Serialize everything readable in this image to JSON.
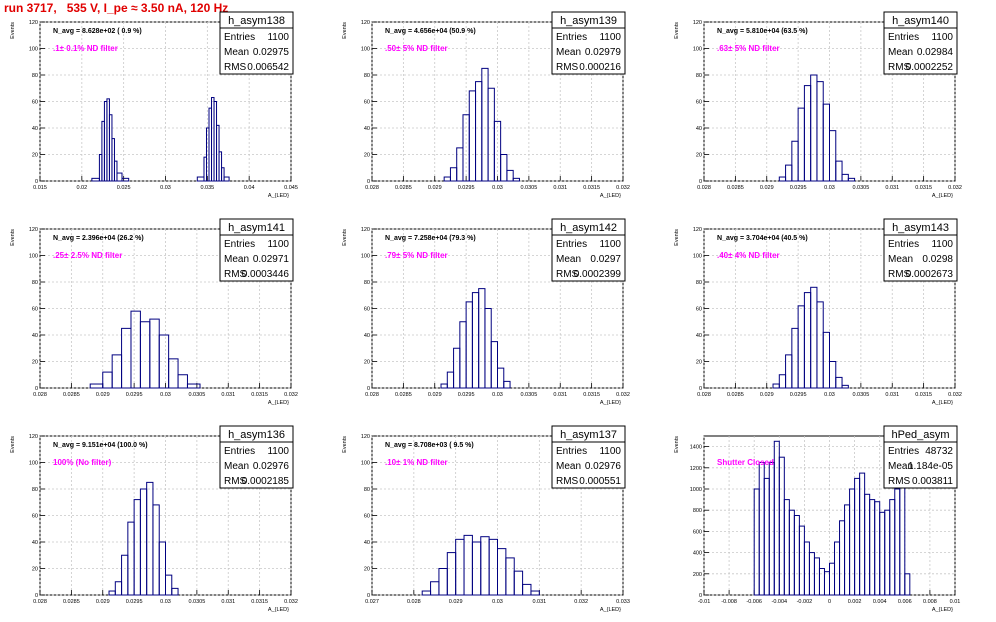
{
  "page_title": "run 3717,   535 V, I_pe ≈ 3.50 nA, 120 Hz",
  "colors": {
    "histogram": "#000080",
    "annotation": "#ff00ff",
    "title": "#e00000",
    "grid": "#c8c8c8"
  },
  "stat_labels": {
    "entries": "Entries",
    "mean": "Mean",
    "rms": "RMS"
  },
  "ylabel": "Events",
  "xlabel": "A_{LED}",
  "chart_data": [
    {
      "type": "histogram",
      "name": "h_asym138",
      "entries": "1100",
      "mean": "0.02975",
      "rms": "0.006542",
      "navg": "N_avg = 8.628e+02 ( 0.9 %)",
      "filter": ".1± 0.1% ND filter",
      "xlim": [
        0.015,
        0.045
      ],
      "ylim": [
        0,
        120
      ],
      "xticks": [
        0.015,
        0.02,
        0.025,
        0.03,
        0.035,
        0.04,
        0.045
      ],
      "xtick_labels": [
        "0.015",
        "0.02",
        "0.025",
        "0.03",
        "0.035",
        "0.04",
        "0.045"
      ],
      "yticks": [
        0,
        20,
        40,
        60,
        80,
        100,
        120
      ],
      "ytick_labels": [
        "0",
        "20",
        "40",
        "60",
        "80",
        "100",
        "120"
      ],
      "bins": [
        [
          0.0212,
          0.0221,
          2
        ],
        [
          0.0221,
          0.0224,
          20
        ],
        [
          0.0224,
          0.0227,
          45
        ],
        [
          0.0227,
          0.023,
          60
        ],
        [
          0.023,
          0.0233,
          62
        ],
        [
          0.0233,
          0.0236,
          50
        ],
        [
          0.0236,
          0.0239,
          32
        ],
        [
          0.0239,
          0.0242,
          15
        ],
        [
          0.0242,
          0.0248,
          6
        ],
        [
          0.0248,
          0.0256,
          2
        ],
        [
          0.0338,
          0.0346,
          3
        ],
        [
          0.0346,
          0.0349,
          18
        ],
        [
          0.0349,
          0.0352,
          40
        ],
        [
          0.0352,
          0.0355,
          55
        ],
        [
          0.0355,
          0.0358,
          63
        ],
        [
          0.0358,
          0.0361,
          60
        ],
        [
          0.0361,
          0.0364,
          42
        ],
        [
          0.0364,
          0.0367,
          22
        ],
        [
          0.0367,
          0.037,
          10
        ],
        [
          0.037,
          0.0376,
          3
        ]
      ]
    },
    {
      "type": "histogram",
      "name": "h_asym139",
      "entries": "1100",
      "mean": "0.02979",
      "rms": "0.000216",
      "navg": "N_avg = 4.656e+04 (50.9 %)",
      "filter": ".50± 5% ND filter",
      "xlim": [
        0.028,
        0.032
      ],
      "ylim": [
        0,
        120
      ],
      "xticks": [
        0.028,
        0.0285,
        0.029,
        0.0295,
        0.03,
        0.0305,
        0.031,
        0.0315,
        0.032
      ],
      "xtick_labels": [
        "0.028",
        "0.0285",
        "0.029",
        "0.0295",
        "0.03",
        "0.0305",
        "0.031",
        "0.0315",
        "0.032"
      ],
      "yticks": [
        0,
        20,
        40,
        60,
        80,
        100,
        120
      ],
      "ytick_labels": [
        "0",
        "20",
        "40",
        "60",
        "80",
        "100",
        "120"
      ],
      "bins": [
        [
          0.02915,
          0.02925,
          3
        ],
        [
          0.02925,
          0.02935,
          10
        ],
        [
          0.02935,
          0.02945,
          25
        ],
        [
          0.02945,
          0.02955,
          50
        ],
        [
          0.02955,
          0.02965,
          68
        ],
        [
          0.02965,
          0.02975,
          75
        ],
        [
          0.02975,
          0.02985,
          85
        ],
        [
          0.02985,
          0.02995,
          70
        ],
        [
          0.02995,
          0.03005,
          45
        ],
        [
          0.03005,
          0.03015,
          20
        ],
        [
          0.03015,
          0.03025,
          8
        ],
        [
          0.03025,
          0.03035,
          2
        ]
      ]
    },
    {
      "type": "histogram",
      "name": "h_asym140",
      "entries": "1100",
      "mean": "0.02984",
      "rms": "0.0002252",
      "navg": "N_avg = 5.810e+04 (63.5 %)",
      "filter": ".63± 5% ND filter",
      "xlim": [
        0.028,
        0.032
      ],
      "ylim": [
        0,
        120
      ],
      "xticks": [
        0.028,
        0.0285,
        0.029,
        0.0295,
        0.03,
        0.0305,
        0.031,
        0.0315,
        0.032
      ],
      "xtick_labels": [
        "0.028",
        "0.0285",
        "0.029",
        "0.0295",
        "0.03",
        "0.0305",
        "0.031",
        "0.0315",
        "0.032"
      ],
      "yticks": [
        0,
        20,
        40,
        60,
        80,
        100,
        120
      ],
      "ytick_labels": [
        "0",
        "20",
        "40",
        "60",
        "80",
        "100",
        "120"
      ],
      "bins": [
        [
          0.0292,
          0.0293,
          3
        ],
        [
          0.0293,
          0.0294,
          12
        ],
        [
          0.0294,
          0.0295,
          30
        ],
        [
          0.0295,
          0.0296,
          55
        ],
        [
          0.0296,
          0.0297,
          72
        ],
        [
          0.0297,
          0.0298,
          80
        ],
        [
          0.0298,
          0.0299,
          75
        ],
        [
          0.0299,
          0.03,
          58
        ],
        [
          0.03,
          0.0301,
          38
        ],
        [
          0.0301,
          0.0302,
          15
        ],
        [
          0.0302,
          0.0303,
          5
        ],
        [
          0.0303,
          0.0304,
          2
        ]
      ]
    },
    {
      "type": "histogram",
      "name": "h_asym141",
      "entries": "1100",
      "mean": "0.02971",
      "rms": "0.0003446",
      "navg": "N_avg = 2.396e+04 (26.2 %)",
      "filter": ".25± 2.5% ND filter",
      "xlim": [
        0.028,
        0.032
      ],
      "ylim": [
        0,
        120
      ],
      "xticks": [
        0.028,
        0.0285,
        0.029,
        0.0295,
        0.03,
        0.0305,
        0.031,
        0.0315,
        0.032
      ],
      "xtick_labels": [
        "0.028",
        "0.0285",
        "0.029",
        "0.0295",
        "0.03",
        "0.0305",
        "0.031",
        "0.0315",
        "0.032"
      ],
      "yticks": [
        0,
        20,
        40,
        60,
        80,
        100,
        120
      ],
      "ytick_labels": [
        "0",
        "20",
        "40",
        "60",
        "80",
        "100",
        "120"
      ],
      "bins": [
        [
          0.0288,
          0.029,
          3
        ],
        [
          0.029,
          0.02915,
          12
        ],
        [
          0.02915,
          0.0293,
          25
        ],
        [
          0.0293,
          0.02945,
          45
        ],
        [
          0.02945,
          0.0296,
          58
        ],
        [
          0.0296,
          0.02975,
          50
        ],
        [
          0.02975,
          0.0299,
          52
        ],
        [
          0.0299,
          0.03005,
          40
        ],
        [
          0.03005,
          0.0302,
          22
        ],
        [
          0.0302,
          0.03035,
          10
        ],
        [
          0.03035,
          0.03055,
          3
        ]
      ]
    },
    {
      "type": "histogram",
      "name": "h_asym142",
      "entries": "1100",
      "mean": "0.0297",
      "rms": "0.0002399",
      "navg": "N_avg = 7.258e+04 (79.3 %)",
      "filter": ".79± 5% ND filter",
      "xlim": [
        0.028,
        0.032
      ],
      "ylim": [
        0,
        120
      ],
      "xticks": [
        0.028,
        0.0285,
        0.029,
        0.0295,
        0.03,
        0.0305,
        0.031,
        0.0315,
        0.032
      ],
      "xtick_labels": [
        "0.028",
        "0.0285",
        "0.029",
        "0.0295",
        "0.03",
        "0.0305",
        "0.031",
        "0.0315",
        "0.032"
      ],
      "yticks": [
        0,
        20,
        40,
        60,
        80,
        100,
        120
      ],
      "ytick_labels": [
        "0",
        "20",
        "40",
        "60",
        "80",
        "100",
        "120"
      ],
      "bins": [
        [
          0.0291,
          0.0292,
          3
        ],
        [
          0.0292,
          0.0293,
          12
        ],
        [
          0.0293,
          0.0294,
          30
        ],
        [
          0.0294,
          0.0295,
          50
        ],
        [
          0.0295,
          0.0296,
          65
        ],
        [
          0.0296,
          0.0297,
          72
        ],
        [
          0.0297,
          0.0298,
          75
        ],
        [
          0.0298,
          0.0299,
          60
        ],
        [
          0.0299,
          0.03,
          35
        ],
        [
          0.03,
          0.0301,
          15
        ],
        [
          0.0301,
          0.0302,
          5
        ]
      ]
    },
    {
      "type": "histogram",
      "name": "h_asym143",
      "entries": "1100",
      "mean": "0.0298",
      "rms": "0.0002673",
      "navg": "N_avg = 3.704e+04 (40.5 %)",
      "filter": ".40± 4% ND filter",
      "xlim": [
        0.028,
        0.032
      ],
      "ylim": [
        0,
        120
      ],
      "xticks": [
        0.028,
        0.0285,
        0.029,
        0.0295,
        0.03,
        0.0305,
        0.031,
        0.0315,
        0.032
      ],
      "xtick_labels": [
        "0.028",
        "0.0285",
        "0.029",
        "0.0295",
        "0.03",
        "0.0305",
        "0.031",
        "0.0315",
        "0.032"
      ],
      "yticks": [
        0,
        20,
        40,
        60,
        80,
        100,
        120
      ],
      "ytick_labels": [
        "0",
        "20",
        "40",
        "60",
        "80",
        "100",
        "120"
      ],
      "bins": [
        [
          0.0291,
          0.0292,
          3
        ],
        [
          0.0292,
          0.0293,
          10
        ],
        [
          0.0293,
          0.0294,
          25
        ],
        [
          0.0294,
          0.0295,
          45
        ],
        [
          0.0295,
          0.0296,
          62
        ],
        [
          0.0296,
          0.0297,
          72
        ],
        [
          0.0297,
          0.0298,
          76
        ],
        [
          0.0298,
          0.0299,
          65
        ],
        [
          0.0299,
          0.03,
          42
        ],
        [
          0.03,
          0.0301,
          20
        ],
        [
          0.0301,
          0.0302,
          8
        ],
        [
          0.0302,
          0.0303,
          2
        ]
      ]
    },
    {
      "type": "histogram",
      "name": "h_asym136",
      "entries": "1100",
      "mean": "0.02976",
      "rms": "0.0002185",
      "navg": "N_avg = 9.151e+04 (100.0 %)",
      "filter": "100% (No filter)",
      "xlim": [
        0.028,
        0.032
      ],
      "ylim": [
        0,
        120
      ],
      "xticks": [
        0.028,
        0.0285,
        0.029,
        0.0295,
        0.03,
        0.0305,
        0.031,
        0.0315,
        0.032
      ],
      "xtick_labels": [
        "0.028",
        "0.0285",
        "0.029",
        "0.0295",
        "0.03",
        "0.0305",
        "0.031",
        "0.0315",
        "0.032"
      ],
      "yticks": [
        0,
        20,
        40,
        60,
        80,
        100,
        120
      ],
      "ytick_labels": [
        "0",
        "20",
        "40",
        "60",
        "80",
        "100",
        "120"
      ],
      "bins": [
        [
          0.0291,
          0.0292,
          3
        ],
        [
          0.0292,
          0.0293,
          10
        ],
        [
          0.0293,
          0.0294,
          30
        ],
        [
          0.0294,
          0.0295,
          55
        ],
        [
          0.0295,
          0.0296,
          72
        ],
        [
          0.0296,
          0.0297,
          80
        ],
        [
          0.0297,
          0.0298,
          85
        ],
        [
          0.0298,
          0.0299,
          68
        ],
        [
          0.0299,
          0.03,
          40
        ],
        [
          0.03,
          0.0301,
          15
        ],
        [
          0.0301,
          0.0302,
          5
        ]
      ]
    },
    {
      "type": "histogram",
      "name": "h_asym137",
      "entries": "1100",
      "mean": "0.02976",
      "rms": "0.000551",
      "navg": "N_avg = 8.708e+03 ( 9.5 %)",
      "filter": ".10± 1% ND filter",
      "xlim": [
        0.027,
        0.033
      ],
      "ylim": [
        0,
        120
      ],
      "xticks": [
        0.027,
        0.028,
        0.029,
        0.03,
        0.031,
        0.032,
        0.033
      ],
      "xtick_labels": [
        "0.027",
        "0.028",
        "0.029",
        "0.03",
        "0.031",
        "0.032",
        "0.033"
      ],
      "yticks": [
        0,
        20,
        40,
        60,
        80,
        100,
        120
      ],
      "ytick_labels": [
        "0",
        "20",
        "40",
        "60",
        "80",
        "100",
        "120"
      ],
      "bins": [
        [
          0.0282,
          0.0284,
          3
        ],
        [
          0.0284,
          0.0286,
          10
        ],
        [
          0.0286,
          0.0288,
          20
        ],
        [
          0.0288,
          0.029,
          32
        ],
        [
          0.029,
          0.0292,
          42
        ],
        [
          0.0292,
          0.0294,
          45
        ],
        [
          0.0294,
          0.0296,
          40
        ],
        [
          0.0296,
          0.0298,
          44
        ],
        [
          0.0298,
          0.03,
          42
        ],
        [
          0.03,
          0.0302,
          35
        ],
        [
          0.0302,
          0.0304,
          28
        ],
        [
          0.0304,
          0.0306,
          18
        ],
        [
          0.0306,
          0.0308,
          8
        ],
        [
          0.0308,
          0.031,
          3
        ]
      ]
    },
    {
      "type": "histogram",
      "name": "hPed_asym",
      "entries": "48732",
      "mean": "1.184e-05",
      "rms": "0.003811",
      "navg": "",
      "filter": "Shutter Closed",
      "xlim": [
        -0.01,
        0.01
      ],
      "ylim": [
        0,
        1500
      ],
      "xticks": [
        -0.01,
        -0.008,
        -0.006,
        -0.004,
        -0.002,
        0,
        0.002,
        0.004,
        0.006,
        0.008,
        0.01
      ],
      "xtick_labels": [
        "-0.01",
        "-0.008",
        "-0.006",
        "-0.004",
        "-0.002",
        "0",
        "0.002",
        "0.004",
        "0.006",
        "0.008",
        "0.01"
      ],
      "yticks": [
        0,
        200,
        400,
        600,
        800,
        1000,
        1200,
        1400
      ],
      "ytick_labels": [
        "0",
        "200",
        "400",
        "600",
        "800",
        "1000",
        "1200",
        "1400"
      ],
      "bins": [
        [
          -0.006,
          -0.0056,
          1000
        ],
        [
          -0.0056,
          -0.0052,
          1250
        ],
        [
          -0.0052,
          -0.0048,
          1100
        ],
        [
          -0.0048,
          -0.0044,
          1250
        ],
        [
          -0.0044,
          -0.004,
          1450
        ],
        [
          -0.004,
          -0.0036,
          1300
        ],
        [
          -0.0036,
          -0.0032,
          900
        ],
        [
          -0.0032,
          -0.0028,
          800
        ],
        [
          -0.0028,
          -0.0024,
          750
        ],
        [
          -0.0024,
          -0.002,
          650
        ],
        [
          -0.002,
          -0.0016,
          500
        ],
        [
          -0.0016,
          -0.0012,
          400
        ],
        [
          -0.0012,
          -0.0008,
          350
        ],
        [
          -0.0008,
          -0.0004,
          250
        ],
        [
          -0.0004,
          0.0,
          220
        ],
        [
          0.0,
          0.0004,
          300
        ],
        [
          0.0004,
          0.0008,
          500
        ],
        [
          0.0008,
          0.0012,
          700
        ],
        [
          0.0012,
          0.0016,
          850
        ],
        [
          0.0016,
          0.002,
          1000
        ],
        [
          0.002,
          0.0024,
          1100
        ],
        [
          0.0024,
          0.0028,
          1150
        ],
        [
          0.0028,
          0.0032,
          950
        ],
        [
          0.0032,
          0.0036,
          900
        ],
        [
          0.0036,
          0.004,
          880
        ],
        [
          0.004,
          0.0044,
          780
        ],
        [
          0.0044,
          0.0048,
          800
        ],
        [
          0.0048,
          0.0052,
          900
        ],
        [
          0.0052,
          0.0056,
          1000
        ],
        [
          0.0056,
          0.006,
          1150
        ],
        [
          0.006,
          0.0064,
          200
        ]
      ]
    }
  ]
}
